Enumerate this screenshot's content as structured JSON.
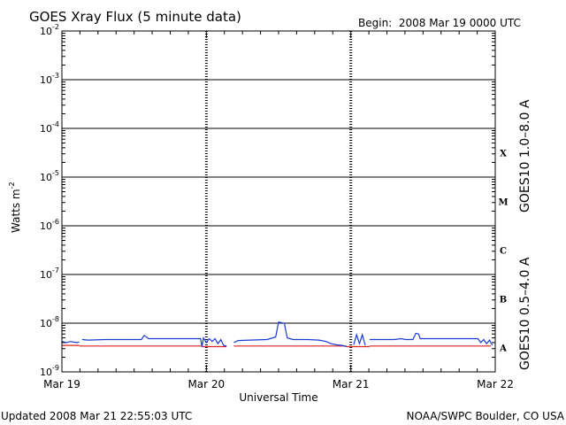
{
  "chart_data": {
    "type": "line",
    "title": "GOES Xray Flux (5 minute data)",
    "begin_text": "Begin:  2008 Mar 19 0000 UTC",
    "ylabel": "Watts m",
    "ylabel_sup": "-2",
    "xlabel": "Universal Time",
    "y_scale": "log",
    "ylim": [
      1e-09,
      0.01
    ],
    "y_ticks": [
      {
        "value": 1e-09,
        "base": "10",
        "exp": "-9"
      },
      {
        "value": 1e-08,
        "base": "10",
        "exp": "-8"
      },
      {
        "value": 1e-07,
        "base": "10",
        "exp": "-7"
      },
      {
        "value": 1e-06,
        "base": "10",
        "exp": "-6"
      },
      {
        "value": 1e-05,
        "base": "10",
        "exp": "-5"
      },
      {
        "value": 0.0001,
        "base": "10",
        "exp": "-4"
      },
      {
        "value": 0.001,
        "base": "10",
        "exp": "-3"
      },
      {
        "value": 0.01,
        "base": "10",
        "exp": "-2"
      }
    ],
    "xlim_days": [
      0,
      3
    ],
    "x_ticks": [
      {
        "day": 0,
        "label": "Mar 19"
      },
      {
        "day": 1,
        "label": "Mar 20"
      },
      {
        "day": 2,
        "label": "Mar 21"
      },
      {
        "day": 3,
        "label": "Mar 22"
      }
    ],
    "flare_classes": [
      {
        "label": "X",
        "exp": -4
      },
      {
        "label": "M",
        "exp": -5
      },
      {
        "label": "C",
        "exp": -6
      },
      {
        "label": "B",
        "exp": -7
      },
      {
        "label": "A",
        "exp": -8
      }
    ],
    "series": [
      {
        "name": "GOES10 1.0–8.0 A",
        "color": "#dd2222",
        "segments": [
          [
            [
              0.0,
              3.5e-09
            ],
            [
              0.12,
              3.5e-09
            ]
          ],
          [
            [
              0.12,
              3.4e-09
            ],
            [
              0.97,
              3.4e-09
            ]
          ],
          [
            [
              0.97,
              3.3e-09
            ],
            [
              1.14,
              3.3e-09
            ]
          ],
          [
            [
              1.19,
              3.4e-09
            ],
            [
              1.97,
              3.4e-09
            ]
          ],
          [
            [
              1.97,
              3.3e-09
            ],
            [
              2.13,
              3.3e-09
            ]
          ],
          [
            [
              2.13,
              3.4e-09
            ],
            [
              2.97,
              3.4e-09
            ]
          ]
        ]
      },
      {
        "name": "GOES10 0.5–4.0 A",
        "color": "#1a3ad6",
        "segments": [
          [
            [
              0.0,
              4.2e-09
            ],
            [
              0.03,
              4e-09
            ],
            [
              0.06,
              4.2e-09
            ],
            [
              0.1,
              4e-09
            ],
            [
              0.12,
              4.1e-09
            ]
          ],
          [
            [
              0.14,
              4.6e-09
            ],
            [
              0.18,
              4.5e-09
            ],
            [
              0.3,
              4.6e-09
            ],
            [
              0.45,
              4.6e-09
            ],
            [
              0.55,
              4.6e-09
            ],
            [
              0.57,
              5.6e-09
            ],
            [
              0.6,
              4.8e-09
            ],
            [
              0.7,
              4.8e-09
            ],
            [
              0.8,
              4.8e-09
            ],
            [
              0.9,
              4.8e-09
            ],
            [
              0.96,
              4.8e-09
            ],
            [
              0.97,
              3.3e-09
            ],
            [
              0.98,
              5e-09
            ],
            [
              1.0,
              4e-09
            ],
            [
              1.02,
              4.8e-09
            ],
            [
              1.04,
              4.2e-09
            ],
            [
              1.06,
              4.8e-09
            ],
            [
              1.08,
              3.8e-09
            ],
            [
              1.1,
              4.6e-09
            ],
            [
              1.12,
              3.5e-09
            ],
            [
              1.14,
              3.4e-09
            ]
          ],
          [
            [
              1.19,
              4e-09
            ],
            [
              1.22,
              4.4e-09
            ],
            [
              1.3,
              4.5e-09
            ],
            [
              1.42,
              4.6e-09
            ],
            [
              1.48,
              5.2e-09
            ],
            [
              1.5,
              1.05e-08
            ],
            [
              1.54,
              1e-08
            ],
            [
              1.56,
              5e-09
            ],
            [
              1.6,
              4.6e-09
            ],
            [
              1.7,
              4.6e-09
            ],
            [
              1.78,
              4.5e-09
            ],
            [
              1.83,
              4.2e-09
            ],
            [
              1.86,
              3.8e-09
            ],
            [
              1.9,
              3.6e-09
            ],
            [
              1.94,
              3.5e-09
            ],
            [
              1.97,
              3.3e-09
            ]
          ],
          [
            [
              2.02,
              3.6e-09
            ],
            [
              2.04,
              5.8e-09
            ],
            [
              2.06,
              3.8e-09
            ],
            [
              2.08,
              5.8e-09
            ],
            [
              2.1,
              3.5e-09
            ]
          ],
          [
            [
              2.13,
              4.6e-09
            ],
            [
              2.3,
              4.6e-09
            ],
            [
              2.35,
              4.8e-09
            ],
            [
              2.38,
              4.6e-09
            ],
            [
              2.43,
              4.6e-09
            ],
            [
              2.45,
              6.2e-09
            ],
            [
              2.47,
              6e-09
            ],
            [
              2.48,
              4.8e-09
            ],
            [
              2.6,
              4.8e-09
            ],
            [
              2.8,
              4.8e-09
            ],
            [
              2.88,
              4.8e-09
            ],
            [
              2.9,
              4e-09
            ],
            [
              2.92,
              4.6e-09
            ],
            [
              2.94,
              3.8e-09
            ],
            [
              2.96,
              4.5e-09
            ],
            [
              2.98,
              3.5e-09
            ]
          ]
        ]
      }
    ]
  },
  "footer": {
    "updated": "Updated 2008 Mar 21 22:55:03 UTC",
    "source": "NOAA/SWPC Boulder, CO USA"
  }
}
